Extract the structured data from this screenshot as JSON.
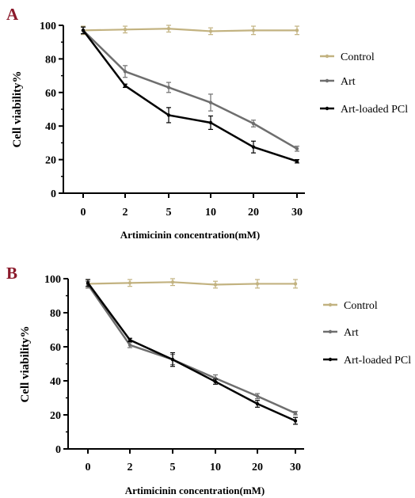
{
  "chart_data": [
    {
      "panel": "A",
      "type": "line",
      "categories": [
        "0",
        "2",
        "5",
        "10",
        "20",
        "30"
      ],
      "ylabel": "Cell viability%",
      "xlabel": "Artimicinin concentration(mM)",
      "ylim": [
        0,
        100
      ],
      "yticks": [
        "0",
        "20",
        "40",
        "60",
        "80",
        "100"
      ],
      "legend_position": "right",
      "series": [
        {
          "name": "Control",
          "color": "#c2b280",
          "values": [
            97,
            97.5,
            98,
            96.5,
            97,
            97
          ],
          "errors": [
            2.5,
            2,
            2,
            2,
            2.5,
            2.5
          ]
        },
        {
          "name": "Art",
          "color": "#6e6e6e",
          "values": [
            97,
            72.5,
            63,
            54,
            41.5,
            26.5
          ],
          "errors": [
            2,
            3.5,
            3,
            5,
            2,
            1.5
          ]
        },
        {
          "name": "Art-loaded PCl",
          "color": "#000000",
          "values": [
            97,
            64,
            46.5,
            42,
            27.5,
            19
          ],
          "errors": [
            2,
            1,
            4.5,
            4,
            3.5,
            1
          ]
        }
      ]
    },
    {
      "panel": "B",
      "type": "line",
      "categories": [
        "0",
        "2",
        "5",
        "10",
        "20",
        "30"
      ],
      "ylabel": "Cell viability%",
      "xlabel": "Artimicinin concentration(mM)",
      "ylim": [
        0,
        100
      ],
      "yticks": [
        "0",
        "20",
        "40",
        "60",
        "80",
        "100"
      ],
      "legend_position": "right",
      "series": [
        {
          "name": "Control",
          "color": "#c2b280",
          "values": [
            97,
            97.5,
            98,
            96.5,
            97,
            97
          ],
          "errors": [
            2.5,
            2,
            2,
            2,
            2.5,
            2.5
          ]
        },
        {
          "name": "Art",
          "color": "#6e6e6e",
          "values": [
            96.5,
            61,
            52.5,
            41.5,
            31,
            21
          ],
          "errors": [
            2,
            1.5,
            3,
            2,
            1.5,
            1
          ]
        },
        {
          "name": "Art-loaded PCl",
          "color": "#000000",
          "values": [
            97.5,
            64,
            52.5,
            39.5,
            26.5,
            16.5
          ],
          "errors": [
            2,
            1,
            4,
            1.5,
            2,
            2
          ]
        }
      ]
    }
  ]
}
